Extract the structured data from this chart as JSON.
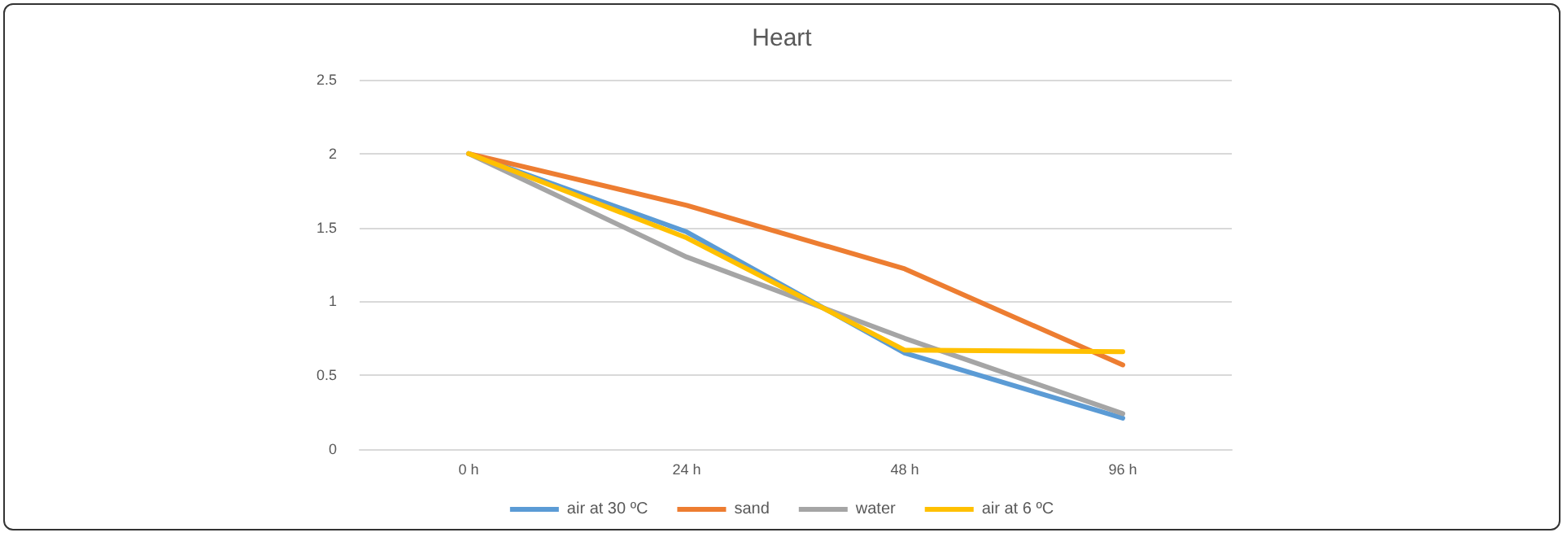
{
  "chart_data": {
    "type": "line",
    "title": "Heart",
    "categories": [
      "0 h",
      "24 h",
      "48 h",
      "96 h"
    ],
    "series": [
      {
        "name": "air at 30 ºC",
        "color": "#5b9bd5",
        "values": [
          2,
          1.47,
          0.65,
          0.21
        ]
      },
      {
        "name": "sand",
        "color": "#ed7d31",
        "values": [
          2,
          1.65,
          1.22,
          0.57
        ]
      },
      {
        "name": "water",
        "color": "#a5a5a5",
        "values": [
          2,
          1.3,
          0.75,
          0.24
        ]
      },
      {
        "name": "air at 6 ºC",
        "color": "#ffc000",
        "values": [
          2,
          1.43,
          0.67,
          0.66
        ]
      }
    ],
    "ylim": [
      0,
      2.5
    ],
    "yticks": [
      0,
      0.5,
      1,
      1.5,
      2,
      2.5
    ],
    "grid": "y",
    "legend": "bottom",
    "marker": "none",
    "line_style": "solid"
  }
}
